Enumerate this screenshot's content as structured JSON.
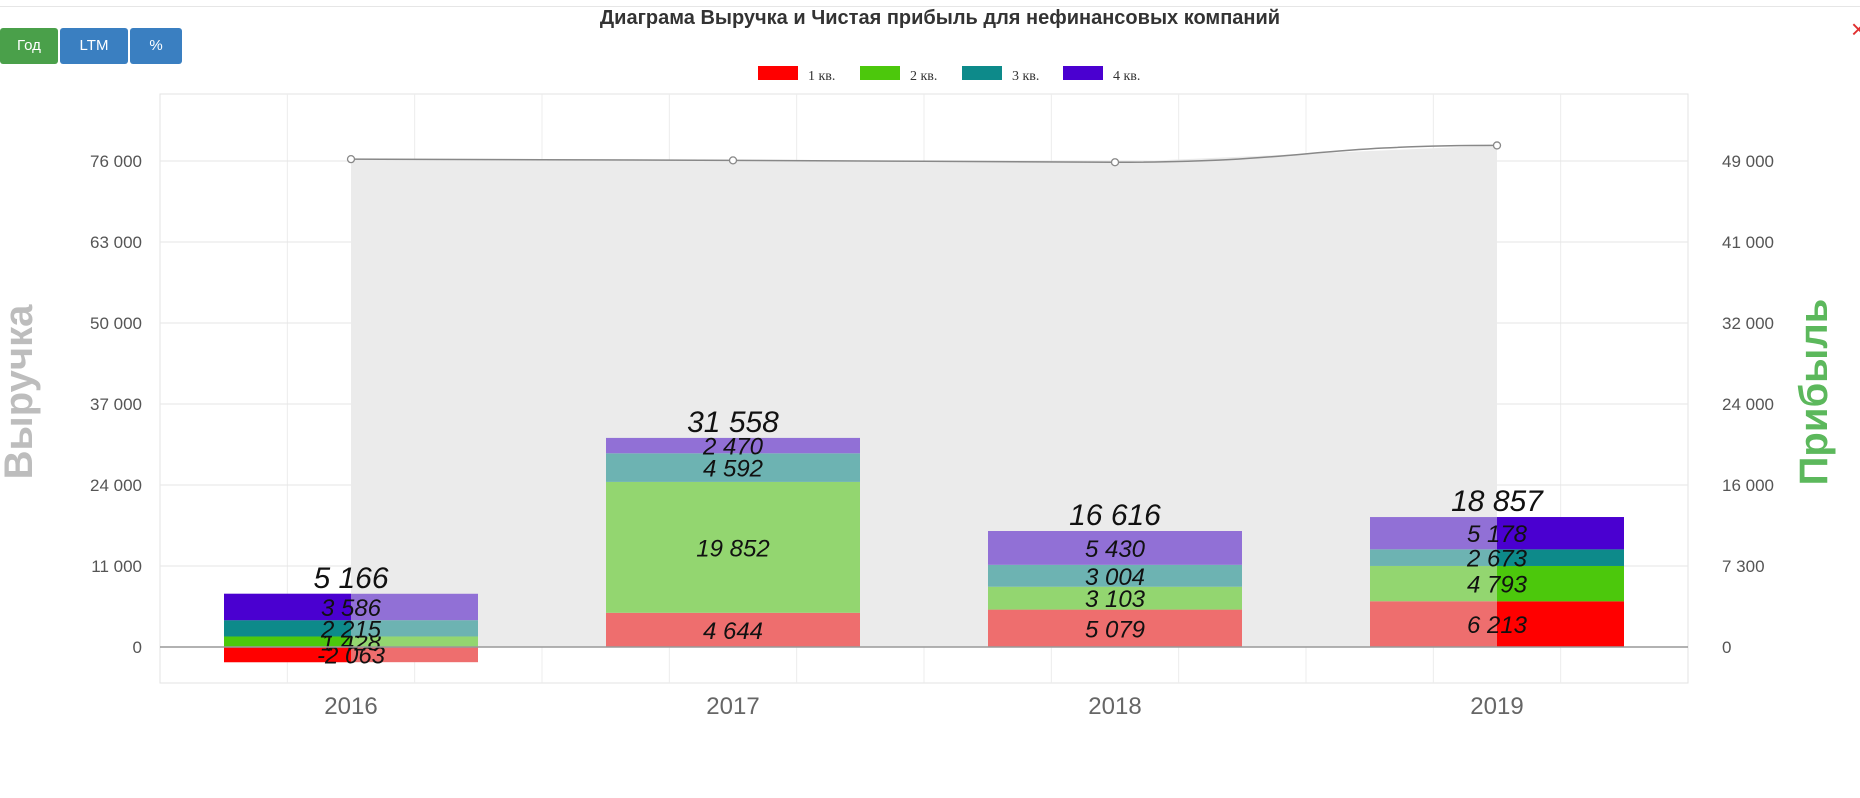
{
  "controls": {
    "buttons": [
      {
        "label": "Год",
        "color": "#4aa04a"
      },
      {
        "label": "LTM",
        "color": "#3a7fc1"
      },
      {
        "label": "%",
        "color": "#3a7fc1"
      }
    ],
    "close": "×"
  },
  "chart_data": {
    "type": "bar",
    "stacked": true,
    "title": "Диаграма Выручка и Чистая прибыль для нефинансовых компаний",
    "ylabel_left": "Выручка",
    "ylabel_right": "Прибыль",
    "categories": [
      "2016",
      "2017",
      "2018",
      "2019"
    ],
    "left_axis_ticks": [
      "0",
      "11 000",
      "24 000",
      "37 000",
      "50 000",
      "63 000",
      "76 000"
    ],
    "right_axis_ticks": [
      "0",
      "7 300",
      "16 000",
      "24 000",
      "32 000",
      "41 000",
      "49 000"
    ],
    "legend_placement": "top",
    "series": [
      {
        "name": "1 кв.",
        "color": "#ff0000",
        "faded": "#ee6e6e",
        "values": [
          -2063,
          4644,
          5079,
          6213
        ]
      },
      {
        "name": "2 кв.",
        "color": "#4cc80c",
        "faded": "#93d670",
        "values": [
          1428,
          19852,
          3103,
          4793
        ]
      },
      {
        "name": "3 кв.",
        "color": "#0d8a8a",
        "faded": "#6db3b2",
        "values": [
          2215,
          4592,
          3004,
          2673
        ]
      },
      {
        "name": "4 кв.",
        "color": "#4a00d0",
        "faded": "#9170d6",
        "values": [
          3586,
          2470,
          5430,
          5178
        ]
      }
    ],
    "totals": [
      5166,
      31558,
      16616,
      18857
    ],
    "value_labels": [
      [
        "-2 063",
        "1 428",
        "2 215",
        "3 586"
      ],
      [
        "4 644",
        "19 852",
        "4 592",
        "2 470"
      ],
      [
        "5 079",
        "3 103",
        "3 004",
        "5 430"
      ],
      [
        "6 213",
        "4 793",
        "2 673",
        "5 178"
      ]
    ],
    "total_labels": [
      "5 166",
      "31 558",
      "16 616",
      "18 857"
    ],
    "bright_half": [
      "left",
      "none",
      "none",
      "right"
    ],
    "revenue_line": {
      "values": [
        76300,
        76100,
        75800,
        78500
      ],
      "area_color": "#ebebeb",
      "line_color": "#888888"
    }
  }
}
